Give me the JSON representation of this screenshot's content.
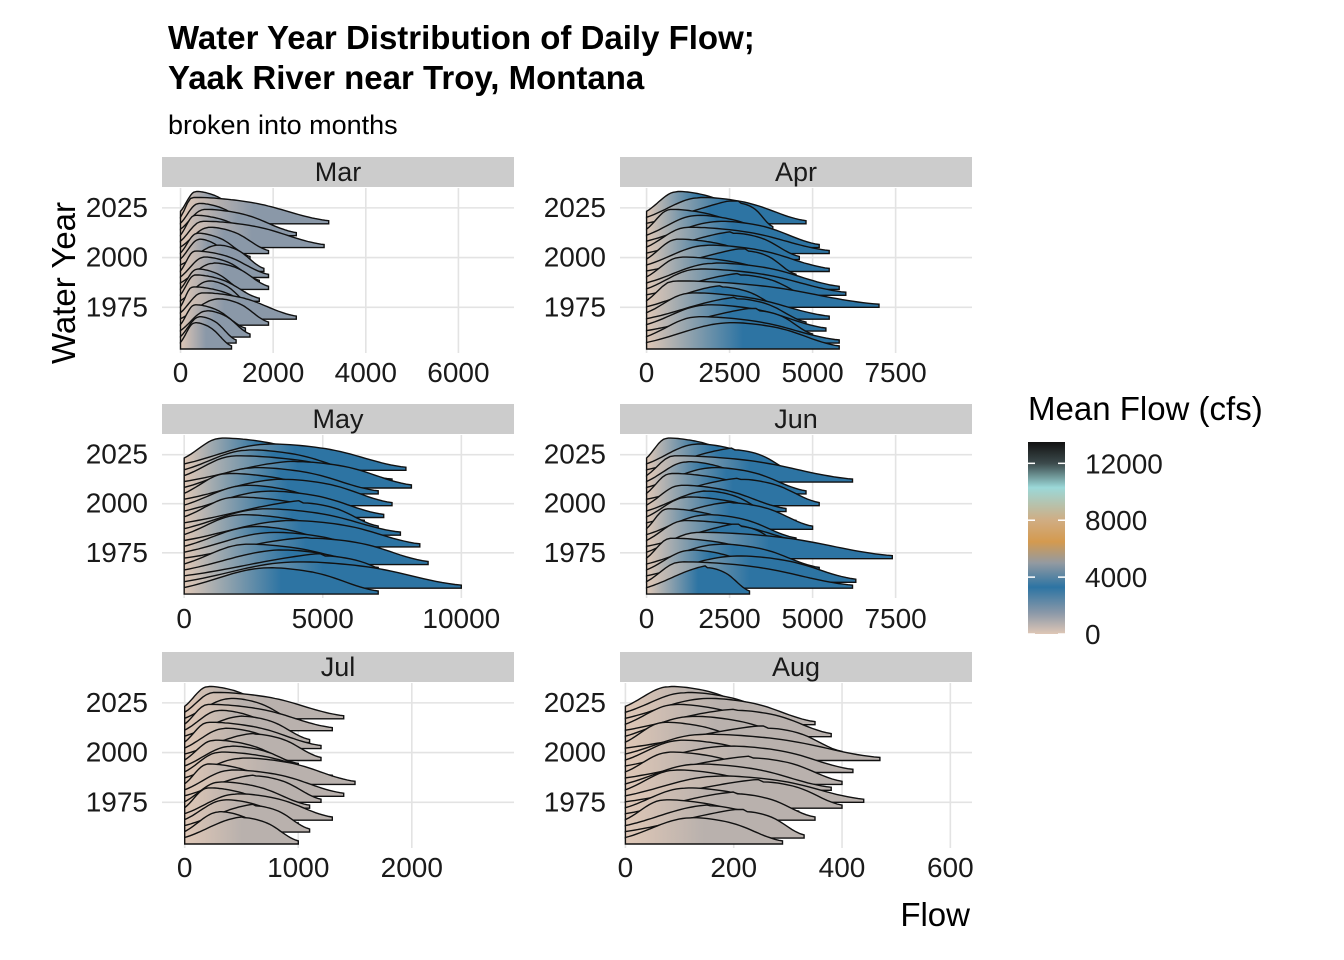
{
  "chart_data": {
    "type": "ridgeline",
    "title_line1": "Water Year Distribution of Daily Flow;",
    "title_line2": "Yaak River near Troy, Montana",
    "subtitle": "broken into months",
    "xlabel": "Flow",
    "ylabel": "Water Year",
    "legend": {
      "title": "Mean Flow (cfs)",
      "placement": "right",
      "range": [
        0,
        13500
      ],
      "ticks": [
        0,
        4000,
        8000,
        12000
      ],
      "tick_labels": [
        "0",
        "4000",
        "8000",
        "12000"
      ],
      "gradient": [
        {
          "value": 0,
          "color": "#dfc7b6"
        },
        {
          "value": 1500,
          "color": "#8a98a8"
        },
        {
          "value": 3300,
          "color": "#2d74a3"
        },
        {
          "value": 5000,
          "color": "#939aa1"
        },
        {
          "value": 6500,
          "color": "#d49a4f"
        },
        {
          "value": 8000,
          "color": "#d0ad83"
        },
        {
          "value": 10300,
          "color": "#9bd8d8"
        },
        {
          "value": 12000,
          "color": "#3c4a4c"
        },
        {
          "value": 13500,
          "color": "#121212"
        }
      ]
    },
    "grid": true,
    "panels": [
      {
        "month": "Mar",
        "xlim": [
          -400,
          7200
        ],
        "xticks": [
          0,
          2000,
          4000,
          6000
        ],
        "xtick_labels": [
          "0",
          "2000",
          "4000",
          "6000"
        ],
        "ylim": [
          1952,
          2035
        ],
        "yticks": [
          1975,
          2000,
          2025
        ],
        "ytick_labels": [
          "1975",
          "2000",
          "2025"
        ],
        "peak_color": "#8a98a8",
        "ridges": [
          {
            "year": 2025,
            "peak": 320,
            "max": 1400
          },
          {
            "year": 2022,
            "peak": 250,
            "max": 3200
          },
          {
            "year": 2019,
            "peak": 380,
            "max": 1600
          },
          {
            "year": 2016,
            "peak": 500,
            "max": 2500
          },
          {
            "year": 2013,
            "peak": 300,
            "max": 1800
          },
          {
            "year": 2010,
            "peak": 450,
            "max": 3100
          },
          {
            "year": 2007,
            "peak": 600,
            "max": 1900
          },
          {
            "year": 2004,
            "peak": 350,
            "max": 1500
          },
          {
            "year": 2001,
            "peak": 400,
            "max": 1200
          },
          {
            "year": 1998,
            "peak": 800,
            "max": 1800
          },
          {
            "year": 1995,
            "peak": 300,
            "max": 1900
          },
          {
            "year": 1992,
            "peak": 500,
            "max": 1700
          },
          {
            "year": 1989,
            "peak": 700,
            "max": 1900
          },
          {
            "year": 1986,
            "peak": 350,
            "max": 1400
          },
          {
            "year": 1983,
            "peak": 300,
            "max": 1700
          },
          {
            "year": 1980,
            "peak": 600,
            "max": 1500
          },
          {
            "year": 1977,
            "peak": 250,
            "max": 1800
          },
          {
            "year": 1974,
            "peak": 450,
            "max": 2500
          },
          {
            "year": 1971,
            "peak": 800,
            "max": 1900
          },
          {
            "year": 1968,
            "peak": 300,
            "max": 1400
          },
          {
            "year": 1965,
            "peak": 550,
            "max": 1500
          },
          {
            "year": 1962,
            "peak": 400,
            "max": 1200
          },
          {
            "year": 1959,
            "peak": 300,
            "max": 1100
          }
        ]
      },
      {
        "month": "Apr",
        "xlim": [
          -800,
          9800
        ],
        "xticks": [
          0,
          2500,
          5000,
          7500
        ],
        "xtick_labels": [
          "0",
          "2500",
          "5000",
          "7500"
        ],
        "ylim": [
          1952,
          2035
        ],
        "yticks": [
          1975,
          2000,
          2025
        ],
        "ytick_labels": [
          "1975",
          "2000",
          "2025"
        ],
        "peak_color": "#2d74a3",
        "ridges": [
          {
            "year": 2025,
            "peak": 900,
            "max": 3200
          },
          {
            "year": 2022,
            "peak": 1600,
            "max": 4800
          },
          {
            "year": 2019,
            "peak": 2800,
            "max": 3800
          },
          {
            "year": 2016,
            "peak": 700,
            "max": 3500
          },
          {
            "year": 2013,
            "peak": 1500,
            "max": 4200
          },
          {
            "year": 2010,
            "peak": 2200,
            "max": 5200
          },
          {
            "year": 2007,
            "peak": 1200,
            "max": 5500
          },
          {
            "year": 2004,
            "peak": 2600,
            "max": 4600
          },
          {
            "year": 2001,
            "peak": 900,
            "max": 4000
          },
          {
            "year": 1998,
            "peak": 1800,
            "max": 5500
          },
          {
            "year": 1995,
            "peak": 3000,
            "max": 4500
          },
          {
            "year": 1992,
            "peak": 1000,
            "max": 4800
          },
          {
            "year": 1989,
            "peak": 2000,
            "max": 5800
          },
          {
            "year": 1986,
            "peak": 1500,
            "max": 6000
          },
          {
            "year": 1983,
            "peak": 2800,
            "max": 5000
          },
          {
            "year": 1980,
            "peak": 800,
            "max": 7000
          },
          {
            "year": 1977,
            "peak": 2200,
            "max": 4200
          },
          {
            "year": 1974,
            "peak": 1300,
            "max": 5500
          },
          {
            "year": 1971,
            "peak": 2700,
            "max": 4800
          },
          {
            "year": 1968,
            "peak": 1800,
            "max": 5400
          },
          {
            "year": 1965,
            "peak": 3300,
            "max": 5000
          },
          {
            "year": 1962,
            "peak": 1500,
            "max": 5800
          },
          {
            "year": 1959,
            "peak": 2500,
            "max": 5800
          }
        ]
      },
      {
        "month": "May",
        "xlim": [
          -800,
          11900
        ],
        "xticks": [
          0,
          5000,
          10000
        ],
        "xtick_labels": [
          "0",
          "5000",
          "10000"
        ],
        "ylim": [
          1952,
          2035
        ],
        "yticks": [
          1975,
          2000,
          2025
        ],
        "ytick_labels": [
          "1975",
          "2000",
          "2025"
        ],
        "peak_color": "#2d74a3",
        "ridges": [
          {
            "year": 2025,
            "peak": 1300,
            "max": 5500
          },
          {
            "year": 2022,
            "peak": 3000,
            "max": 8000
          },
          {
            "year": 2019,
            "peak": 2300,
            "max": 6500
          },
          {
            "year": 2016,
            "peak": 1800,
            "max": 7500
          },
          {
            "year": 2013,
            "peak": 4000,
            "max": 8200
          },
          {
            "year": 2010,
            "peak": 2500,
            "max": 7000
          },
          {
            "year": 2007,
            "peak": 1500,
            "max": 6000
          },
          {
            "year": 2004,
            "peak": 3500,
            "max": 7500
          },
          {
            "year": 2001,
            "peak": 2200,
            "max": 5800
          },
          {
            "year": 1998,
            "peak": 3000,
            "max": 7200
          },
          {
            "year": 1995,
            "peak": 1800,
            "max": 6500
          },
          {
            "year": 1992,
            "peak": 4200,
            "max": 7000
          },
          {
            "year": 1989,
            "peak": 2800,
            "max": 7800
          },
          {
            "year": 1986,
            "peak": 2000,
            "max": 6500
          },
          {
            "year": 1983,
            "peak": 3800,
            "max": 8500
          },
          {
            "year": 1980,
            "peak": 2500,
            "max": 6000
          },
          {
            "year": 1977,
            "peak": 3200,
            "max": 7500
          },
          {
            "year": 1974,
            "peak": 4500,
            "max": 8800
          },
          {
            "year": 1971,
            "peak": 2200,
            "max": 7000
          },
          {
            "year": 1968,
            "peak": 3500,
            "max": 7500
          },
          {
            "year": 1965,
            "peak": 5000,
            "max": 8000
          },
          {
            "year": 1962,
            "peak": 4000,
            "max": 10000
          },
          {
            "year": 1959,
            "peak": 3000,
            "max": 7000
          }
        ]
      },
      {
        "month": "Jun",
        "xlim": [
          -800,
          9800
        ],
        "xticks": [
          0,
          2500,
          5000,
          7500
        ],
        "xtick_labels": [
          "0",
          "2500",
          "5000",
          "7500"
        ],
        "ylim": [
          1952,
          2035
        ],
        "yticks": [
          1975,
          2000,
          2025
        ],
        "ytick_labels": [
          "1975",
          "2000",
          "2025"
        ],
        "peak_color": "#2d74a3",
        "ridges": [
          {
            "year": 2025,
            "peak": 600,
            "max": 3200
          },
          {
            "year": 2022,
            "peak": 1500,
            "max": 4000
          },
          {
            "year": 2019,
            "peak": 2600,
            "max": 4500
          },
          {
            "year": 2016,
            "peak": 800,
            "max": 6200
          },
          {
            "year": 2013,
            "peak": 1200,
            "max": 3500
          },
          {
            "year": 2010,
            "peak": 2000,
            "max": 4800
          },
          {
            "year": 2007,
            "peak": 700,
            "max": 4200
          },
          {
            "year": 2004,
            "peak": 2800,
            "max": 5200
          },
          {
            "year": 2001,
            "peak": 1000,
            "max": 4200
          },
          {
            "year": 1998,
            "peak": 1800,
            "max": 3800
          },
          {
            "year": 1995,
            "peak": 1200,
            "max": 4500
          },
          {
            "year": 1992,
            "peak": 2500,
            "max": 5000
          },
          {
            "year": 1989,
            "peak": 600,
            "max": 3500
          },
          {
            "year": 1986,
            "peak": 1800,
            "max": 4500
          },
          {
            "year": 1983,
            "peak": 1100,
            "max": 5000
          },
          {
            "year": 1980,
            "peak": 2800,
            "max": 4200
          },
          {
            "year": 1977,
            "peak": 1500,
            "max": 7400
          },
          {
            "year": 1974,
            "peak": 700,
            "max": 4500
          },
          {
            "year": 1971,
            "peak": 2200,
            "max": 5200
          },
          {
            "year": 1968,
            "peak": 1300,
            "max": 3800
          },
          {
            "year": 1965,
            "peak": 2700,
            "max": 6300
          },
          {
            "year": 1962,
            "peak": 1000,
            "max": 6200
          },
          {
            "year": 1959,
            "peak": 1800,
            "max": 3100
          }
        ]
      },
      {
        "month": "Jul",
        "xlim": [
          -200,
          2900
        ],
        "xticks": [
          0,
          1000,
          2000
        ],
        "xtick_labels": [
          "0",
          "1000",
          "2000"
        ],
        "ylim": [
          1952,
          2035
        ],
        "yticks": [
          1975,
          2000,
          2025
        ],
        "ytick_labels": [
          "1975",
          "2000",
          "2025"
        ],
        "peak_color": "#b9b1ad",
        "ridges": [
          {
            "year": 2025,
            "peak": 200,
            "max": 800
          },
          {
            "year": 2022,
            "peak": 250,
            "max": 1400
          },
          {
            "year": 2019,
            "peak": 400,
            "max": 1000
          },
          {
            "year": 2016,
            "peak": 200,
            "max": 1300
          },
          {
            "year": 2013,
            "peak": 300,
            "max": 900
          },
          {
            "year": 2010,
            "peak": 500,
            "max": 1100
          },
          {
            "year": 2007,
            "peak": 200,
            "max": 1200
          },
          {
            "year": 2004,
            "peak": 350,
            "max": 1000
          },
          {
            "year": 2001,
            "peak": 600,
            "max": 1200
          },
          {
            "year": 1998,
            "peak": 250,
            "max": 1000
          },
          {
            "year": 1995,
            "peak": 400,
            "max": 1100
          },
          {
            "year": 1992,
            "peak": 300,
            "max": 1300
          },
          {
            "year": 1989,
            "peak": 500,
            "max": 1500
          },
          {
            "year": 1986,
            "peak": 200,
            "max": 900
          },
          {
            "year": 1983,
            "peak": 400,
            "max": 1400
          },
          {
            "year": 1980,
            "peak": 600,
            "max": 1200
          },
          {
            "year": 1977,
            "peak": 300,
            "max": 1100
          },
          {
            "year": 1974,
            "peak": 200,
            "max": 900
          },
          {
            "year": 1971,
            "peak": 450,
            "max": 1300
          },
          {
            "year": 1968,
            "peak": 350,
            "max": 1000
          },
          {
            "year": 1965,
            "peak": 600,
            "max": 1100
          },
          {
            "year": 1962,
            "peak": 300,
            "max": 800
          },
          {
            "year": 1959,
            "peak": 500,
            "max": 1000
          }
        ]
      },
      {
        "month": "Aug",
        "xlim": [
          -10,
          640
        ],
        "xticks": [
          0,
          200,
          400,
          600
        ],
        "xtick_labels": [
          "0",
          "200",
          "400",
          "600"
        ],
        "ylim": [
          1952,
          2035
        ],
        "yticks": [
          1975,
          2000,
          2025
        ],
        "ytick_labels": [
          "1975",
          "2000",
          "2025"
        ],
        "peak_color": "#b9b1ad",
        "ridges": [
          {
            "year": 2025,
            "peak": 80,
            "max": 250
          },
          {
            "year": 2022,
            "peak": 110,
            "max": 300
          },
          {
            "year": 2019,
            "peak": 150,
            "max": 350
          },
          {
            "year": 2016,
            "peak": 90,
            "max": 280
          },
          {
            "year": 2013,
            "peak": 200,
            "max": 380
          },
          {
            "year": 2010,
            "peak": 120,
            "max": 330
          },
          {
            "year": 2007,
            "peak": 70,
            "max": 250
          },
          {
            "year": 2004,
            "peak": 260,
            "max": 400
          },
          {
            "year": 2001,
            "peak": 140,
            "max": 470
          },
          {
            "year": 1998,
            "peak": 100,
            "max": 300
          },
          {
            "year": 1995,
            "peak": 190,
            "max": 420
          },
          {
            "year": 1992,
            "peak": 80,
            "max": 280
          },
          {
            "year": 1989,
            "peak": 230,
            "max": 400
          },
          {
            "year": 1986,
            "peak": 130,
            "max": 380
          },
          {
            "year": 1983,
            "peak": 90,
            "max": 300
          },
          {
            "year": 1980,
            "peak": 170,
            "max": 440
          },
          {
            "year": 1977,
            "peak": 250,
            "max": 400
          },
          {
            "year": 1974,
            "peak": 110,
            "max": 320
          },
          {
            "year": 1971,
            "peak": 200,
            "max": 350
          },
          {
            "year": 1968,
            "peak": 70,
            "max": 280
          },
          {
            "year": 1965,
            "peak": 150,
            "max": 300
          },
          {
            "year": 1962,
            "peak": 220,
            "max": 330
          },
          {
            "year": 1959,
            "peak": 120,
            "max": 290
          }
        ]
      }
    ]
  }
}
